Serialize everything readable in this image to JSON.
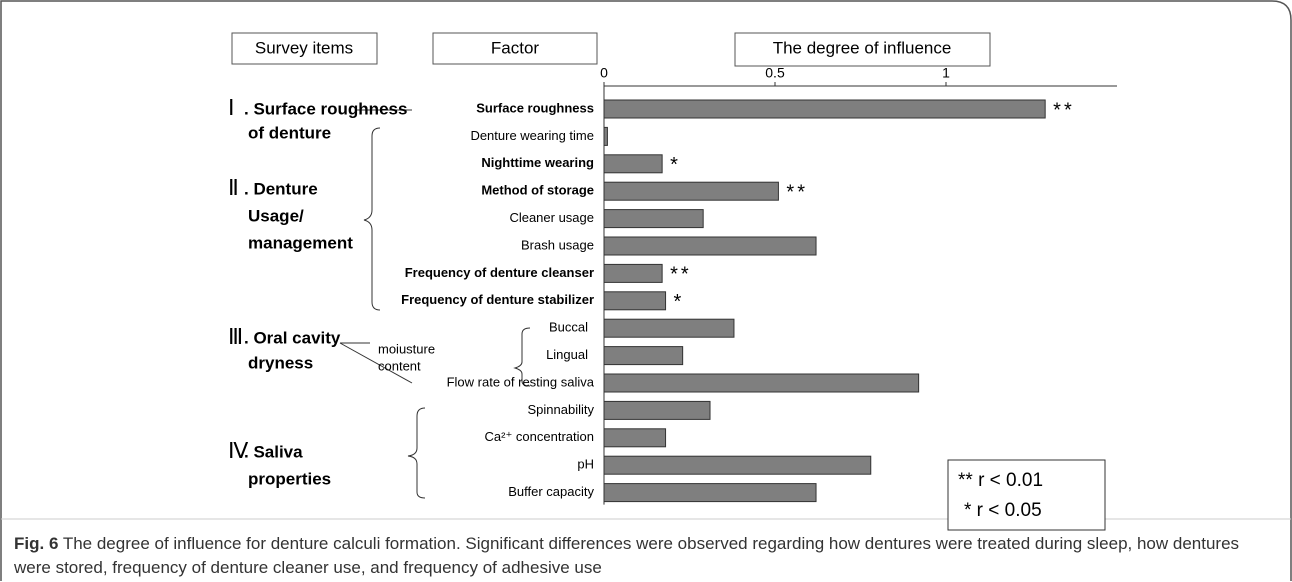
{
  "chart_data": {
    "type": "barh",
    "headers": [
      "Survey items",
      "Factor",
      "The degree of influence"
    ],
    "categories": [
      "Surface roughness",
      "Denture wearing time",
      "Nighttime wearing",
      "Method of storage",
      "Cleaner usage",
      "Brash usage",
      "Frequency of denture cleanser",
      "Frequency of denture stabilizer",
      "Buccal",
      "Lingual",
      "Flow rate of resting saliva",
      "Spinnability",
      "Ca²⁺ concentration",
      "pH",
      "Buffer capacity"
    ],
    "bold": [
      true,
      false,
      true,
      true,
      false,
      false,
      true,
      true,
      false,
      false,
      false,
      false,
      false,
      false,
      false
    ],
    "values": [
      1.29,
      0.01,
      0.17,
      0.51,
      0.29,
      0.62,
      0.17,
      0.18,
      0.38,
      0.23,
      0.92,
      0.31,
      0.18,
      0.78,
      0.62
    ],
    "significance": [
      "**",
      null,
      "*",
      "**",
      null,
      null,
      "**",
      "*",
      null,
      null,
      null,
      null,
      null,
      null,
      null
    ],
    "color": "#7f7f7f",
    "xlim": [
      0,
      1.5
    ],
    "xticks": [
      0,
      0.5,
      1
    ],
    "groups": [
      {
        "numeral": "Ⅰ",
        "lines": [
          ". Surface roughness",
          "of denture"
        ]
      },
      {
        "numeral": "Ⅱ",
        "lines": [
          ". Denture",
          "Usage/",
          "management"
        ]
      },
      {
        "numeral": "Ⅲ",
        "lines": [
          ". Oral cavity",
          "dryness"
        ]
      },
      {
        "numeral": "Ⅳ",
        "lines": [
          ". Saliva",
          "properties"
        ]
      }
    ],
    "subgroup": [
      "moiusture",
      "content"
    ],
    "legend": [
      "** r < 0.01",
      "* r < 0.05"
    ],
    "caption": {
      "label": "Fig. 6",
      "text": " The degree of influence for denture calculi formation. Significant differences were observed regarding how dentures were treated during sleep, how dentures were stored, frequency of denture cleaner use, and frequency of adhesive use"
    }
  }
}
